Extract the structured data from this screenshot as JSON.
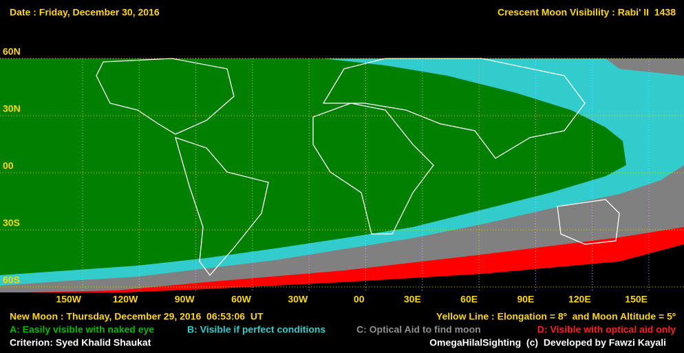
{
  "header": {
    "date": "Date : Friday, December 30, 2016",
    "title": "Crescent Moon Visibility : Rabi' II  1438"
  },
  "map": {
    "latitude_labels": [
      "60N",
      "30N",
      "00",
      "30S",
      "60S"
    ],
    "longitude_labels": [
      "150W",
      "120W",
      "90W",
      "60W",
      "30W",
      "00",
      "30E",
      "60E",
      "90E",
      "120E",
      "150E"
    ]
  },
  "footer": {
    "new_moon": "New Moon : Thursday, December 29, 2016  06:53:06  UT",
    "yellow_line": "Yellow Line : Elongation = 8º  and Moon Altitude = 5º",
    "legend": [
      "A: Easily visible with naked eye",
      "B: Visible if perfect conditions",
      "C: Optical Aid to find moon",
      "D: Visible with optical aid only"
    ],
    "criterion": "Criterion: Syed Khalid Shaukat",
    "credit": "OmegaHilalSighting  (c)  Developed by Fawzi Kayali"
  }
}
